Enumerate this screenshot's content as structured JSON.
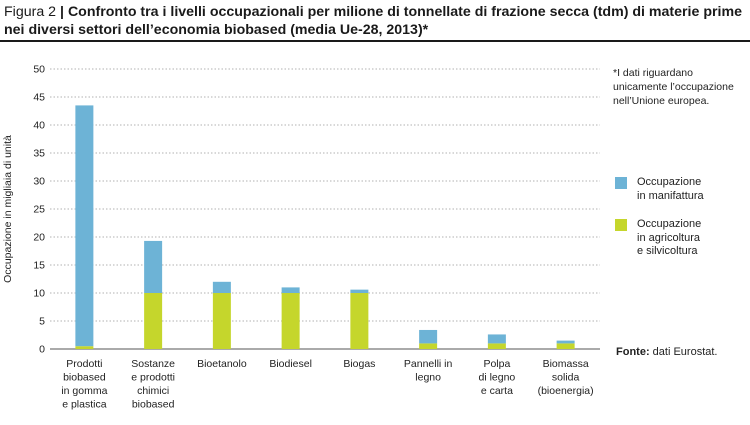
{
  "header": {
    "figure_label": "Figura 2",
    "separator": "|",
    "title": "Confronto tra i livelli occupazionali per milione di tonnellate di frazione secca (tdm) di materie prime nei diversi settori dell’economia biobased (media Ue-28, 2013)*"
  },
  "note": "*I dati riguardano unicamente l’occupazione nell’Unione europea.",
  "source": {
    "label": "Fonte:",
    "text": " dati Eurostat."
  },
  "colors": {
    "manufacturing": "#6db3d6",
    "agriculture": "#c5d62c",
    "grid": "#999999"
  },
  "chart_data": {
    "type": "bar",
    "stacked": true,
    "ylabel": "Occupazione in migliaia di unità",
    "xlabel": "",
    "ylim": [
      0,
      50
    ],
    "yticks": [
      0,
      5,
      10,
      15,
      20,
      25,
      30,
      35,
      40,
      45,
      50
    ],
    "grid": true,
    "legend_position": "right",
    "categories": [
      [
        "Prodotti",
        "biobased",
        "in gomma",
        "e plastica"
      ],
      [
        "Sostanze",
        "e prodotti",
        "chimici",
        "biobased"
      ],
      [
        "Bioetanolo"
      ],
      [
        "Biodiesel"
      ],
      [
        "Biogas"
      ],
      [
        "Pannelli in",
        "legno"
      ],
      [
        "Polpa",
        "di legno",
        "e carta"
      ],
      [
        "Biomassa",
        "solida",
        "(bioenergia)"
      ]
    ],
    "series": [
      {
        "name": "Occupazione in agricoltura e silvicoltura",
        "label_lines": [
          "Occupazione",
          "in agricoltura",
          "e silvicoltura"
        ],
        "color": "#c5d62c",
        "values": [
          0.5,
          10,
          10,
          10,
          10,
          1,
          1,
          1
        ]
      },
      {
        "name": "Occupazione in manifattura",
        "label_lines": [
          "Occupazione",
          "in manifattura"
        ],
        "color": "#6db3d6",
        "values": [
          43,
          9.3,
          2,
          1,
          0.6,
          2.4,
          1.6,
          0.5
        ]
      }
    ]
  }
}
